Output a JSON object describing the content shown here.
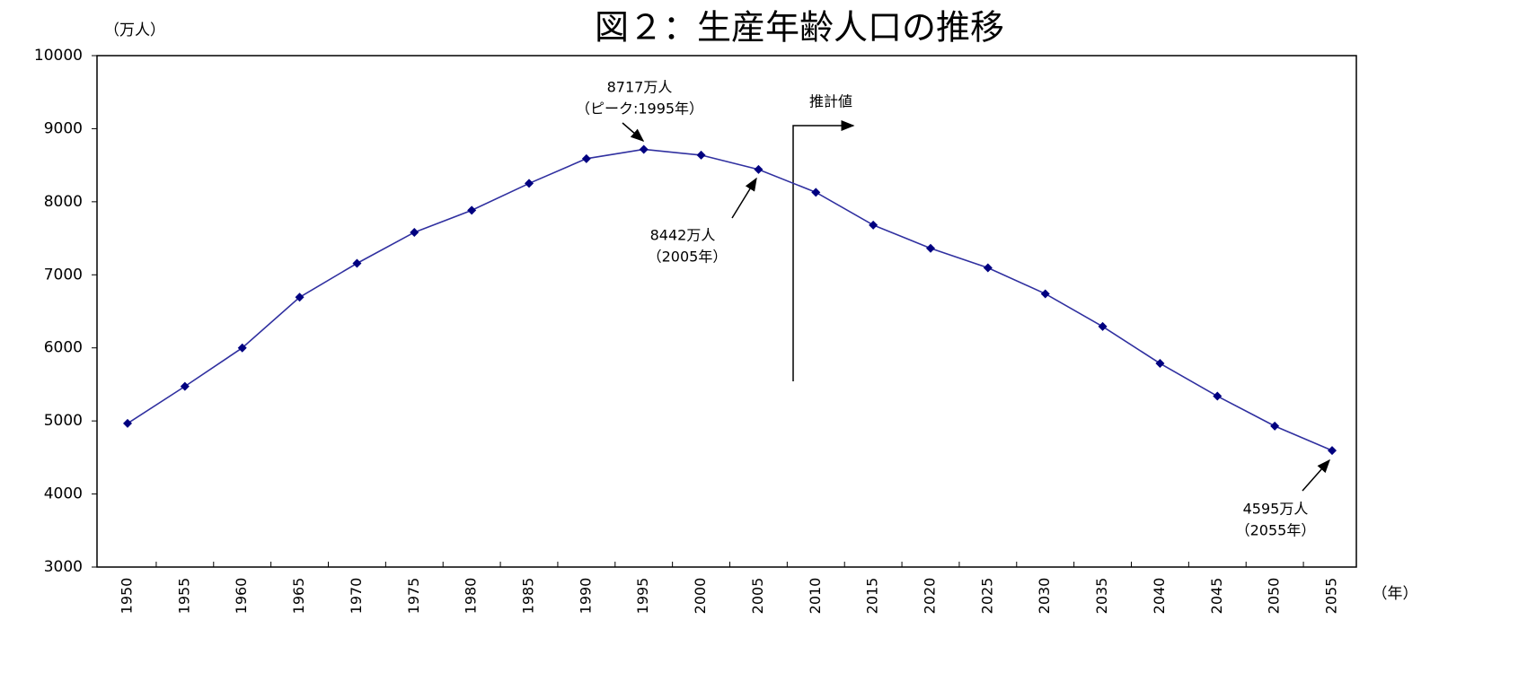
{
  "chart_data": {
    "type": "line",
    "title": "図２：生産年齢人口の推移",
    "y_label": "（万人）",
    "x_label": "（年）",
    "categories": [
      "1950",
      "1955",
      "1960",
      "1965",
      "1970",
      "1975",
      "1980",
      "1985",
      "1990",
      "1995",
      "2000",
      "2005",
      "2010",
      "2015",
      "2020",
      "2025",
      "2030",
      "2035",
      "2040",
      "2045",
      "2050",
      "2055"
    ],
    "series": [
      {
        "name": "生産年齢人口",
        "color": "#000080",
        "values": [
          4966,
          5473,
          6000,
          6693,
          7157,
          7581,
          7883,
          8251,
          8590,
          8717,
          8638,
          8442,
          8129,
          7681,
          7363,
          7096,
          6740,
          6292,
          5787,
          5339,
          4930,
          4595
        ]
      }
    ],
    "ylim": [
      3000,
      10000
    ],
    "yticks": [
      3000,
      4000,
      5000,
      6000,
      7000,
      8000,
      9000,
      10000
    ],
    "grid": false,
    "annotations": [
      "8717万人",
      "（ピーク:1995年）",
      "8442万人",
      "（2005年）",
      "4595万人",
      "（2055年）",
      "推計値"
    ]
  }
}
